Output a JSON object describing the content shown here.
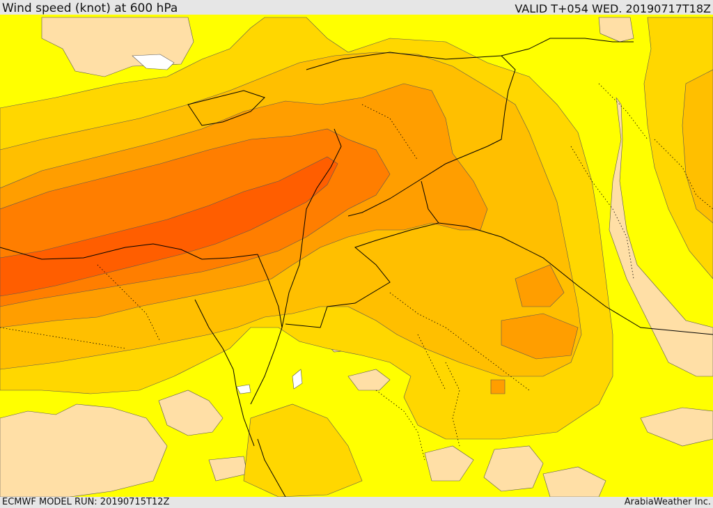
{
  "header": {
    "title": "Wind speed (knot) at 600 hPa",
    "valid": "VALID T+054 WED. 20190717T18Z"
  },
  "footer": {
    "model_run": "ECMWF MODEL RUN: 20190715T12Z",
    "credit": "ArabiaWeather Inc."
  },
  "legend_colors": {
    "calm": "#ffffff",
    "light": "#ffdfa6",
    "moderate": "#ffff00",
    "fresh": "#ffd700",
    "strong": "#ffbf00",
    "stronger": "#ff9e00",
    "very_strong": "#ff7e00",
    "jet": "#ff5e00",
    "border_color": "#000000"
  }
}
